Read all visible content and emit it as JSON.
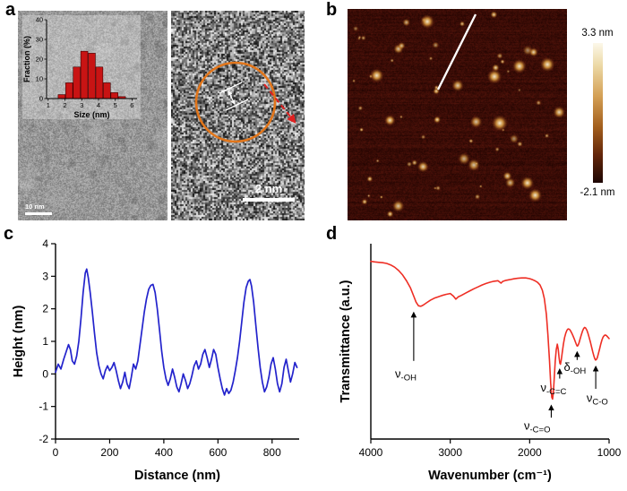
{
  "figure": {
    "panel_labels": {
      "a": "a",
      "b": "b",
      "c": "c",
      "d": "d"
    }
  },
  "panel_a": {
    "tem_scale_bar": "10 nm",
    "hrtem_scale_bar": "2 nm"
  },
  "panel_b": {
    "colorbar_max": "3.3 nm",
    "colorbar_min": "-2.1 nm"
  },
  "chart_data": [
    {
      "id": "size-histogram",
      "type": "bar",
      "panel": "a (inset)",
      "xlabel": "Size (nm)",
      "ylabel": "Fraction (%)",
      "xlim": [
        0.9,
        6.3
      ],
      "ylim": [
        0,
        40
      ],
      "xticks": [
        1,
        2,
        3,
        4,
        5,
        6
      ],
      "yticks": [
        0,
        10,
        20,
        30,
        40
      ],
      "bar_width": 0.42,
      "bar_color": "#c81414",
      "categories": [
        1.8,
        2.25,
        2.7,
        3.15,
        3.6,
        4.05,
        4.5,
        4.95,
        5.4
      ],
      "values": [
        2,
        8,
        16,
        24,
        23,
        16,
        8,
        3,
        1
      ]
    },
    {
      "id": "afm-height-profile",
      "type": "line",
      "panel": "c",
      "xlabel": "Distance (nm)",
      "ylabel": "Height (nm)",
      "xlim": [
        0,
        900
      ],
      "ylim": [
        -2,
        4
      ],
      "xticks": [
        0,
        200,
        400,
        600,
        800
      ],
      "yticks": [
        -2,
        -1,
        0,
        1,
        2,
        3,
        4
      ],
      "color": "#2323cc",
      "points": [
        [
          0,
          0.05
        ],
        [
          10,
          0.3
        ],
        [
          20,
          0.15
        ],
        [
          30,
          0.45
        ],
        [
          40,
          0.7
        ],
        [
          48,
          0.9
        ],
        [
          55,
          0.75
        ],
        [
          62,
          0.4
        ],
        [
          70,
          0.3
        ],
        [
          78,
          0.55
        ],
        [
          86,
          1.0
        ],
        [
          94,
          1.7
        ],
        [
          102,
          2.5
        ],
        [
          110,
          3.1
        ],
        [
          115,
          3.22
        ],
        [
          121,
          2.95
        ],
        [
          128,
          2.5
        ],
        [
          136,
          1.9
        ],
        [
          144,
          1.25
        ],
        [
          152,
          0.65
        ],
        [
          160,
          0.25
        ],
        [
          168,
          0.0
        ],
        [
          176,
          -0.15
        ],
        [
          184,
          0.1
        ],
        [
          192,
          0.25
        ],
        [
          200,
          0.1
        ],
        [
          208,
          0.2
        ],
        [
          216,
          0.35
        ],
        [
          224,
          0.1
        ],
        [
          232,
          -0.2
        ],
        [
          240,
          -0.45
        ],
        [
          248,
          -0.25
        ],
        [
          256,
          0.05
        ],
        [
          264,
          -0.3
        ],
        [
          272,
          -0.45
        ],
        [
          280,
          -0.1
        ],
        [
          288,
          0.3
        ],
        [
          296,
          0.15
        ],
        [
          304,
          0.4
        ],
        [
          312,
          0.9
        ],
        [
          320,
          1.4
        ],
        [
          328,
          1.9
        ],
        [
          336,
          2.3
        ],
        [
          344,
          2.6
        ],
        [
          352,
          2.72
        ],
        [
          360,
          2.75
        ],
        [
          368,
          2.5
        ],
        [
          376,
          2.0
        ],
        [
          384,
          1.35
        ],
        [
          392,
          0.7
        ],
        [
          400,
          0.2
        ],
        [
          408,
          -0.15
        ],
        [
          416,
          -0.35
        ],
        [
          424,
          -0.15
        ],
        [
          432,
          0.15
        ],
        [
          440,
          -0.1
        ],
        [
          448,
          -0.4
        ],
        [
          456,
          -0.55
        ],
        [
          464,
          -0.3
        ],
        [
          472,
          0.0
        ],
        [
          480,
          -0.2
        ],
        [
          488,
          -0.45
        ],
        [
          496,
          -0.3
        ],
        [
          504,
          -0.05
        ],
        [
          512,
          0.25
        ],
        [
          520,
          0.4
        ],
        [
          528,
          0.15
        ],
        [
          536,
          0.3
        ],
        [
          544,
          0.6
        ],
        [
          552,
          0.75
        ],
        [
          560,
          0.5
        ],
        [
          568,
          0.2
        ],
        [
          576,
          0.45
        ],
        [
          584,
          0.75
        ],
        [
          592,
          0.6
        ],
        [
          600,
          0.2
        ],
        [
          608,
          -0.15
        ],
        [
          616,
          -0.45
        ],
        [
          624,
          -0.65
        ],
        [
          632,
          -0.45
        ],
        [
          640,
          -0.6
        ],
        [
          648,
          -0.5
        ],
        [
          656,
          -0.25
        ],
        [
          664,
          0.1
        ],
        [
          672,
          0.5
        ],
        [
          680,
          1.0
        ],
        [
          688,
          1.6
        ],
        [
          696,
          2.2
        ],
        [
          704,
          2.65
        ],
        [
          712,
          2.85
        ],
        [
          718,
          2.9
        ],
        [
          724,
          2.7
        ],
        [
          732,
          2.2
        ],
        [
          740,
          1.5
        ],
        [
          748,
          0.8
        ],
        [
          756,
          0.2
        ],
        [
          764,
          -0.25
        ],
        [
          772,
          -0.55
        ],
        [
          780,
          -0.4
        ],
        [
          788,
          -0.1
        ],
        [
          796,
          0.3
        ],
        [
          804,
          0.5
        ],
        [
          812,
          0.15
        ],
        [
          820,
          -0.3
        ],
        [
          828,
          -0.55
        ],
        [
          836,
          -0.3
        ],
        [
          844,
          0.2
        ],
        [
          852,
          0.45
        ],
        [
          860,
          0.1
        ],
        [
          868,
          -0.25
        ],
        [
          876,
          0.0
        ],
        [
          884,
          0.35
        ],
        [
          892,
          0.2
        ]
      ]
    },
    {
      "id": "ftir-spectrum",
      "type": "line",
      "panel": "d",
      "xlabel": "Wavenumber (cm⁻¹)",
      "ylabel": "Transmittance (a.u.)",
      "xlim": [
        4000,
        1000
      ],
      "ylim": [
        0,
        1.05
      ],
      "xticks": [
        4000,
        3000,
        2000,
        1000
      ],
      "yticks": [],
      "color": "#ee2e24",
      "points": [
        [
          4000,
          0.955
        ],
        [
          3950,
          0.952
        ],
        [
          3900,
          0.95
        ],
        [
          3850,
          0.948
        ],
        [
          3800,
          0.944
        ],
        [
          3750,
          0.936
        ],
        [
          3700,
          0.924
        ],
        [
          3650,
          0.906
        ],
        [
          3600,
          0.882
        ],
        [
          3550,
          0.85
        ],
        [
          3500,
          0.812
        ],
        [
          3460,
          0.768
        ],
        [
          3430,
          0.736
        ],
        [
          3400,
          0.716
        ],
        [
          3370,
          0.714
        ],
        [
          3340,
          0.72
        ],
        [
          3300,
          0.732
        ],
        [
          3250,
          0.746
        ],
        [
          3200,
          0.757
        ],
        [
          3150,
          0.765
        ],
        [
          3100,
          0.772
        ],
        [
          3050,
          0.778
        ],
        [
          3000,
          0.782
        ],
        [
          2960,
          0.768
        ],
        [
          2930,
          0.752
        ],
        [
          2900,
          0.764
        ],
        [
          2860,
          0.772
        ],
        [
          2800,
          0.786
        ],
        [
          2750,
          0.797
        ],
        [
          2700,
          0.808
        ],
        [
          2650,
          0.818
        ],
        [
          2600,
          0.828
        ],
        [
          2550,
          0.836
        ],
        [
          2500,
          0.843
        ],
        [
          2450,
          0.848
        ],
        [
          2400,
          0.851
        ],
        [
          2360,
          0.838
        ],
        [
          2340,
          0.847
        ],
        [
          2300,
          0.853
        ],
        [
          2250,
          0.857
        ],
        [
          2200,
          0.861
        ],
        [
          2150,
          0.864
        ],
        [
          2100,
          0.866
        ],
        [
          2050,
          0.866
        ],
        [
          2000,
          0.862
        ],
        [
          1960,
          0.856
        ],
        [
          1930,
          0.85
        ],
        [
          1900,
          0.842
        ],
        [
          1870,
          0.828
        ],
        [
          1840,
          0.8
        ],
        [
          1815,
          0.755
        ],
        [
          1790,
          0.67
        ],
        [
          1770,
          0.56
        ],
        [
          1750,
          0.42
        ],
        [
          1735,
          0.3
        ],
        [
          1722,
          0.225
        ],
        [
          1712,
          0.215
        ],
        [
          1702,
          0.25
        ],
        [
          1690,
          0.33
        ],
        [
          1678,
          0.42
        ],
        [
          1665,
          0.48
        ],
        [
          1652,
          0.51
        ],
        [
          1640,
          0.48
        ],
        [
          1630,
          0.44
        ],
        [
          1620,
          0.408
        ],
        [
          1612,
          0.402
        ],
        [
          1602,
          0.425
        ],
        [
          1590,
          0.465
        ],
        [
          1575,
          0.51
        ],
        [
          1560,
          0.545
        ],
        [
          1545,
          0.57
        ],
        [
          1530,
          0.585
        ],
        [
          1515,
          0.592
        ],
        [
          1500,
          0.59
        ],
        [
          1485,
          0.582
        ],
        [
          1470,
          0.57
        ],
        [
          1455,
          0.555
        ],
        [
          1440,
          0.54
        ],
        [
          1425,
          0.523
        ],
        [
          1412,
          0.508
        ],
        [
          1402,
          0.5
        ],
        [
          1392,
          0.502
        ],
        [
          1380,
          0.515
        ],
        [
          1365,
          0.537
        ],
        [
          1350,
          0.56
        ],
        [
          1335,
          0.58
        ],
        [
          1320,
          0.594
        ],
        [
          1308,
          0.6
        ],
        [
          1295,
          0.597
        ],
        [
          1280,
          0.585
        ],
        [
          1265,
          0.567
        ],
        [
          1250,
          0.545
        ],
        [
          1235,
          0.52
        ],
        [
          1220,
          0.494
        ],
        [
          1205,
          0.468
        ],
        [
          1192,
          0.447
        ],
        [
          1180,
          0.432
        ],
        [
          1170,
          0.425
        ],
        [
          1160,
          0.427
        ],
        [
          1148,
          0.438
        ],
        [
          1135,
          0.458
        ],
        [
          1120,
          0.484
        ],
        [
          1105,
          0.51
        ],
        [
          1090,
          0.532
        ],
        [
          1075,
          0.548
        ],
        [
          1060,
          0.557
        ],
        [
          1045,
          0.559
        ],
        [
          1030,
          0.555
        ],
        [
          1015,
          0.547
        ],
        [
          1000,
          0.54
        ]
      ],
      "annotations": [
        {
          "sym": "ν",
          "sub": "-OH",
          "tx": 3560,
          "ty": 0.33,
          "ax": 3460,
          "a1": 0.42,
          "a2": 0.68
        },
        {
          "sym": "ν",
          "sub": "-C=O",
          "tx": 1905,
          "ty": 0.05,
          "ax": 1728,
          "a1": 0.115,
          "a2": 0.18
        },
        {
          "sym": "ν",
          "sub": "-C=C",
          "tx": 1700,
          "ty": 0.255,
          "ax": 1622,
          "a1": 0.325,
          "a2": 0.375
        },
        {
          "sym": "δ",
          "sub": "-OH",
          "tx": 1430,
          "ty": 0.365,
          "ax": 1402,
          "a1": 0.425,
          "a2": 0.468
        },
        {
          "sym": "ν",
          "sub": "C-O",
          "tx": 1148,
          "ty": 0.2,
          "ax": 1168,
          "a1": 0.27,
          "a2": 0.39
        }
      ]
    }
  ]
}
